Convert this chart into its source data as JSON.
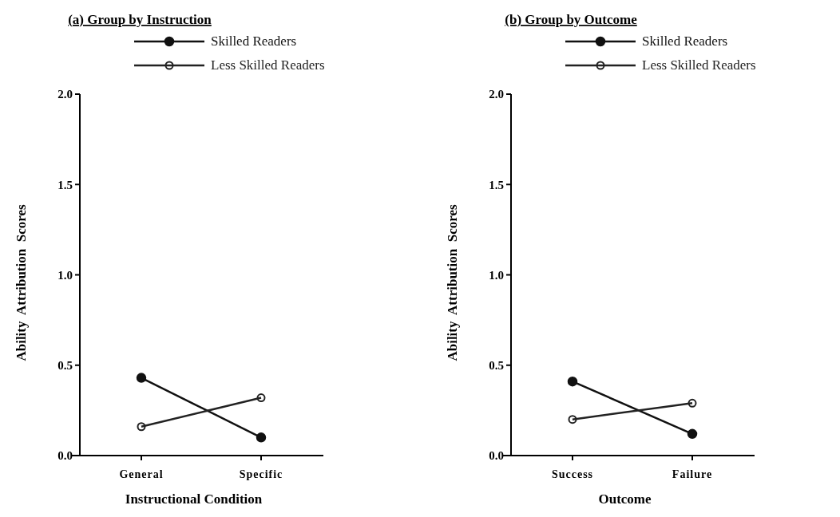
{
  "chart_data": [
    {
      "type": "line",
      "title": "(a) Group by Instruction",
      "xlabel": "Instructional Condition",
      "ylabel": "Ability  Attribution  Scores",
      "categories": [
        "General",
        "Specific"
      ],
      "series": [
        {
          "name": "Skilled Readers",
          "color": "#111111",
          "values": [
            0.43,
            0.1
          ],
          "marker": "circle"
        },
        {
          "name": "Less Skilled Readers",
          "color": "#222222",
          "values": [
            0.16,
            0.32
          ],
          "marker": "circle"
        }
      ],
      "ylim": [
        0,
        2
      ],
      "yticks": [
        {
          "value": 0,
          "label": "0.0"
        },
        {
          "value": 0.5,
          "label": "0.5"
        },
        {
          "value": 1,
          "label": "1.0"
        },
        {
          "value": 1.5,
          "label": "1.5"
        },
        {
          "value": 2,
          "label": "2.0"
        }
      ],
      "legend": "top"
    },
    {
      "type": "line",
      "title": "(b) Group by Outcome",
      "xlabel": "Outcome",
      "ylabel": "Ability  Attribution  Scores",
      "categories": [
        "Success",
        "Failure"
      ],
      "series": [
        {
          "name": "Skilled Readers",
          "color": "#111111",
          "values": [
            0.41,
            0.12
          ],
          "marker": "circle"
        },
        {
          "name": "Less Skilled Readers",
          "color": "#222222",
          "values": [
            0.2,
            0.29
          ],
          "marker": "circle"
        }
      ],
      "ylim": [
        0,
        2
      ],
      "yticks": [
        {
          "value": 0,
          "label": "0.0"
        },
        {
          "value": 0.5,
          "label": "0.5"
        },
        {
          "value": 1,
          "label": "1.0"
        },
        {
          "value": 1.5,
          "label": "1.5"
        },
        {
          "value": 2,
          "label": "2.0"
        }
      ],
      "legend": "top"
    }
  ]
}
